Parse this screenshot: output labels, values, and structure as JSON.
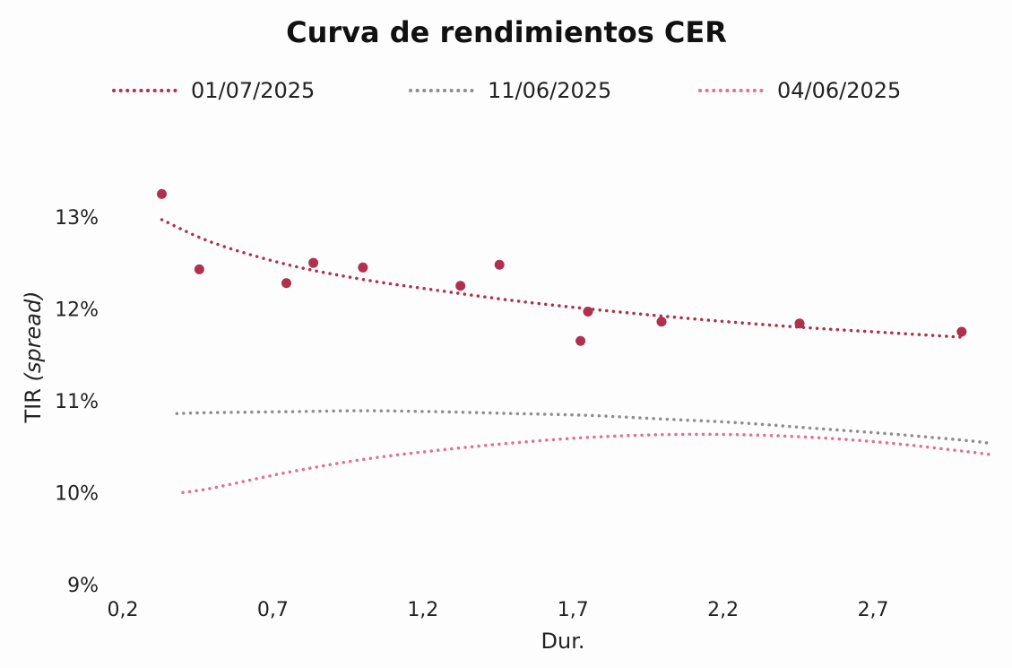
{
  "chart_data": {
    "type": "scatter",
    "title": "Curva de rendimientos CER",
    "xlabel": "Dur.",
    "ylabel_main": "TIR ",
    "ylabel_italic": "(spread)",
    "xlim": [
      0.2,
      3.1
    ],
    "ylim": [
      8.9,
      13.8
    ],
    "x_ticks": [
      0.2,
      0.7,
      1.2,
      1.7,
      2.2,
      2.7
    ],
    "x_tick_labels": [
      "0,2",
      "0,7",
      "1,2",
      "1,7",
      "2,2",
      "2,7"
    ],
    "y_ticks": [
      9,
      10,
      11,
      12,
      13
    ],
    "y_tick_labels": [
      "9%",
      "10%",
      "11%",
      "12%",
      "13%"
    ],
    "legend": [
      "01/07/2025",
      "11/06/2025",
      "04/06/2025"
    ],
    "colors": {
      "s1": "#b03050",
      "s2": "#8e8e92",
      "s3": "#e27098"
    },
    "points": {
      "name": "01/07/2025",
      "x": [
        0.33,
        0.455,
        0.745,
        0.835,
        1.0,
        1.325,
        1.455,
        1.725,
        1.75,
        1.995,
        2.455,
        2.995
      ],
      "y": [
        13.25,
        12.43,
        12.28,
        12.5,
        12.45,
        12.25,
        12.48,
        11.65,
        11.97,
        11.86,
        11.84,
        11.75
      ]
    },
    "series": [
      {
        "name": "01/07/2025",
        "style": "dotted",
        "x": [
          0.33,
          0.5,
          0.75,
          1.0,
          1.25,
          1.5,
          1.75,
          2.0,
          2.25,
          2.5,
          2.75,
          3.0
        ],
        "y": [
          12.97,
          12.72,
          12.48,
          12.32,
          12.2,
          12.09,
          12.0,
          11.92,
          11.85,
          11.79,
          11.74,
          11.69
        ]
      },
      {
        "name": "11/06/2025",
        "style": "dotted",
        "x": [
          0.38,
          0.5,
          0.75,
          1.0,
          1.25,
          1.5,
          1.75,
          2.0,
          2.25,
          2.5,
          2.75,
          3.0,
          3.08
        ],
        "y": [
          10.86,
          10.87,
          10.88,
          10.89,
          10.88,
          10.86,
          10.84,
          10.8,
          10.76,
          10.7,
          10.64,
          10.57,
          10.54
        ]
      },
      {
        "name": "04/06/2025",
        "style": "dotted",
        "x": [
          0.4,
          0.5,
          0.75,
          1.0,
          1.25,
          1.5,
          1.75,
          2.0,
          2.25,
          2.5,
          2.75,
          3.0,
          3.1
        ],
        "y": [
          10.0,
          10.05,
          10.22,
          10.36,
          10.46,
          10.54,
          10.6,
          10.63,
          10.63,
          10.6,
          10.54,
          10.45,
          10.41
        ]
      }
    ]
  }
}
